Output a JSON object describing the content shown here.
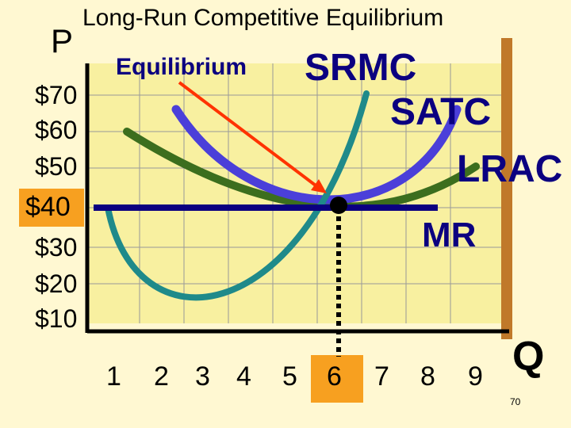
{
  "title": "Long-Run Competitive Equilibrium",
  "axes": {
    "y_label": "P",
    "x_label": "Q",
    "y_ticks": [
      "$70",
      "$60",
      "$50",
      "$40",
      "$30",
      "$20",
      "$10"
    ],
    "x_ticks": [
      "1",
      "2",
      "3",
      "4",
      "5",
      "6",
      "7",
      "8",
      "9"
    ],
    "highlighted_y_tick": "$40",
    "highlighted_x_tick": "6"
  },
  "labels": {
    "equilibrium": "Equilibrium",
    "srmc": "SRMC",
    "satc": "SATC",
    "lrac": "LRAC",
    "mr": "MR"
  },
  "equilibrium": {
    "price": 40,
    "quantity": 6
  },
  "slide_number": "70",
  "colors": {
    "background": "#FFF8D2",
    "plot_area": "#F8F0A0",
    "srmc": "#4B3FD9",
    "satc": "#1F8A8A",
    "lrac": "#3C6E1E",
    "mr": "#0B0080",
    "arrow": "#FF3300",
    "highlight": "#F7A020",
    "right_bar": "#C0792A"
  }
}
